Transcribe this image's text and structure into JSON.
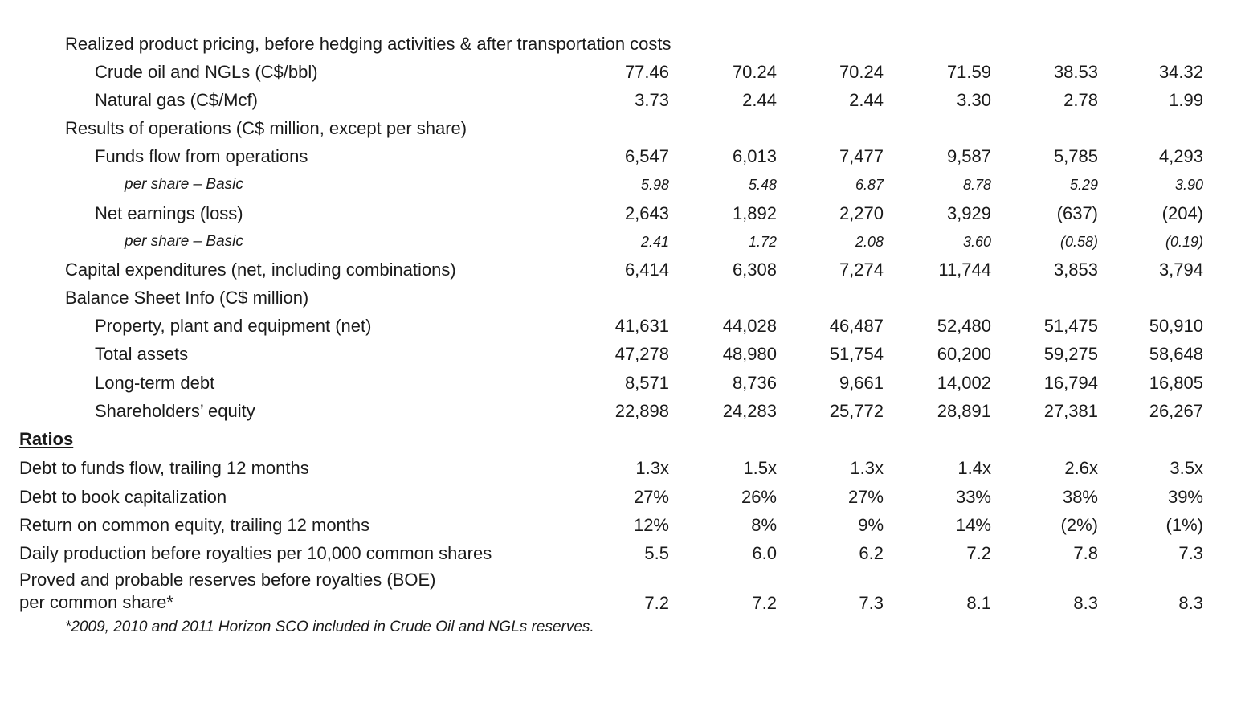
{
  "pricing": {
    "heading": "Realized product pricing, before hedging activities & after transportation costs",
    "rows": [
      {
        "label": "Crude oil and NGLs (C$/bbl)",
        "values": [
          "77.46",
          "70.24",
          "70.24",
          "71.59",
          "38.53",
          "34.32"
        ]
      },
      {
        "label": "Natural gas (C$/Mcf)",
        "values": [
          "3.73",
          "2.44",
          "2.44",
          "3.30",
          "2.78",
          "1.99"
        ]
      }
    ]
  },
  "operations": {
    "heading": "Results of operations (C$ million, except per share)",
    "funds_flow": {
      "label": "Funds flow from operations",
      "values": [
        "6,547",
        "6,013",
        "7,477",
        "9,587",
        "5,785",
        "4,293"
      ]
    },
    "funds_flow_per_share": {
      "label": "per share – Basic",
      "values": [
        "5.98",
        "5.48",
        "6.87",
        "8.78",
        "5.29",
        "3.90"
      ]
    },
    "net_earnings": {
      "label": "Net earnings (loss)",
      "values": [
        "2,643",
        "1,892",
        "2,270",
        "3,929",
        "(637)",
        "(204)"
      ]
    },
    "net_earnings_per_share": {
      "label": "per share – Basic",
      "values": [
        "2.41",
        "1.72",
        "2.08",
        "3.60",
        "(0.58)",
        "(0.19)"
      ]
    },
    "capex": {
      "label": "Capital expenditures (net, including combinations)",
      "values": [
        "6,414",
        "6,308",
        "7,274",
        "11,744",
        "3,853",
        "3,794"
      ]
    }
  },
  "balance_sheet": {
    "heading": "Balance Sheet Info (C$ million)",
    "rows": [
      {
        "label": "Property, plant and equipment (net)",
        "values": [
          "41,631",
          "44,028",
          "46,487",
          "52,480",
          "51,475",
          "50,910"
        ]
      },
      {
        "label": "Total assets",
        "values": [
          "47,278",
          "48,980",
          "51,754",
          "60,200",
          "59,275",
          "58,648"
        ]
      },
      {
        "label": "Long-term debt",
        "values": [
          "8,571",
          "8,736",
          "9,661",
          "14,002",
          "16,794",
          "16,805"
        ]
      },
      {
        "label": "Shareholders’ equity",
        "values": [
          "22,898",
          "24,283",
          "25,772",
          "28,891",
          "27,381",
          "26,267"
        ]
      }
    ]
  },
  "ratios": {
    "heading": "Ratios",
    "rows": [
      {
        "label": "Debt to funds flow, trailing 12 months",
        "values": [
          "1.3x",
          "1.5x",
          "1.3x",
          "1.4x",
          "2.6x",
          "3.5x"
        ]
      },
      {
        "label": "Debt to book capitalization",
        "values": [
          "27%",
          "26%",
          "27%",
          "33%",
          "38%",
          "39%"
        ]
      },
      {
        "label": "Return on common equity, trailing 12 months",
        "values": [
          "12%",
          "8%",
          "9%",
          "14%",
          "(2%)",
          "(1%)"
        ]
      },
      {
        "label": "Daily production before royalties per 10,000 common shares",
        "values": [
          "5.5",
          "6.0",
          "6.2",
          "7.2",
          "7.8",
          "7.3"
        ]
      }
    ],
    "reserves": {
      "label_line1": "Proved and probable reserves before royalties (BOE)",
      "label_line2": "per common share*",
      "values": [
        "7.2",
        "7.2",
        "7.3",
        "8.1",
        "8.3",
        "8.3"
      ]
    }
  },
  "footnote": "*2009, 2010 and 2011 Horizon SCO included in Crude Oil and NGLs reserves."
}
